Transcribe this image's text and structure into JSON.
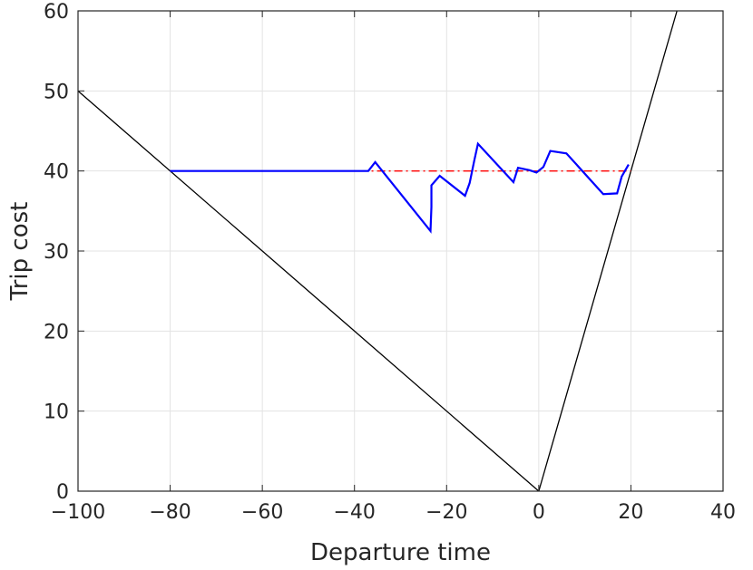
{
  "chart_data": {
    "type": "line",
    "title": "",
    "xlabel": "Departure time",
    "ylabel": "Trip cost",
    "xlim": [
      -100,
      40
    ],
    "ylim": [
      0,
      60
    ],
    "x_ticks": [
      -100,
      -80,
      -60,
      -40,
      -20,
      0,
      20,
      40
    ],
    "y_ticks": [
      0,
      10,
      20,
      30,
      40,
      50,
      60
    ],
    "x_tick_labels": [
      "−100",
      "−80",
      "−60",
      "−40",
      "−20",
      "0",
      "20",
      "40"
    ],
    "y_tick_labels": [
      "0",
      "10",
      "20",
      "30",
      "40",
      "50",
      "60"
    ],
    "grid": true,
    "series": [
      {
        "color": "#000000",
        "style": "solid",
        "x": [
          -100,
          0,
          30
        ],
        "y": [
          50,
          0,
          60
        ]
      },
      {
        "color": "#ff0000",
        "style": "dashdot",
        "x": [
          -80,
          20
        ],
        "y": [
          40,
          40
        ]
      },
      {
        "color": "#0000ff",
        "style": "solid",
        "x": [
          -80,
          -37,
          -35.5,
          -23.5,
          -23.3,
          -23.3,
          -21.5,
          -16,
          -15,
          -14,
          -13.2,
          -5.5,
          -4.5,
          -2,
          -0.5,
          1,
          2.5,
          6,
          14,
          17,
          18,
          19.5
        ],
        "y": [
          40,
          40,
          41.1,
          32.5,
          35.5,
          38.2,
          39.4,
          36.9,
          38.5,
          41.3,
          43.4,
          38.6,
          40.4,
          40.1,
          39.8,
          40.5,
          42.5,
          42.2,
          37.1,
          37.2,
          39.3,
          40.8
        ]
      }
    ]
  }
}
